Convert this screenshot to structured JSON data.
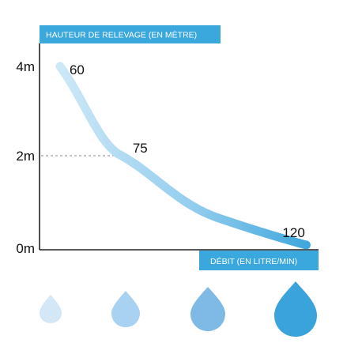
{
  "chart_data": {
    "type": "line",
    "ylabel": "HAUTEUR DE RELEVAGE (EN MÈTRE)",
    "xlabel": "DÉBIT (EN LITRE/MIN)",
    "y_ticks": [
      "4m",
      "2m",
      "0m"
    ],
    "y_tick_values": [
      4,
      2,
      0
    ],
    "ylim": [
      0,
      4
    ],
    "xlim": [
      55,
      123
    ],
    "grid": false,
    "points": [
      {
        "x": 60,
        "y": 4,
        "label": "60"
      },
      {
        "x": 75,
        "y": 2,
        "label": "75"
      },
      {
        "x": 120,
        "y": 0,
        "label": "120"
      }
    ]
  },
  "colors": {
    "accent": "#3aa7dd",
    "curve_start": "#d4ebf8",
    "curve_end": "#39a4dc",
    "axis": "#222222",
    "drops": [
      "#d3e7f7",
      "#a9d1f1",
      "#7fb9e6",
      "#3ba3dc"
    ]
  },
  "drops": [
    "water-drop-icon-small",
    "water-drop-icon-medium",
    "water-drop-icon-large",
    "water-drop-icon-xlarge"
  ]
}
